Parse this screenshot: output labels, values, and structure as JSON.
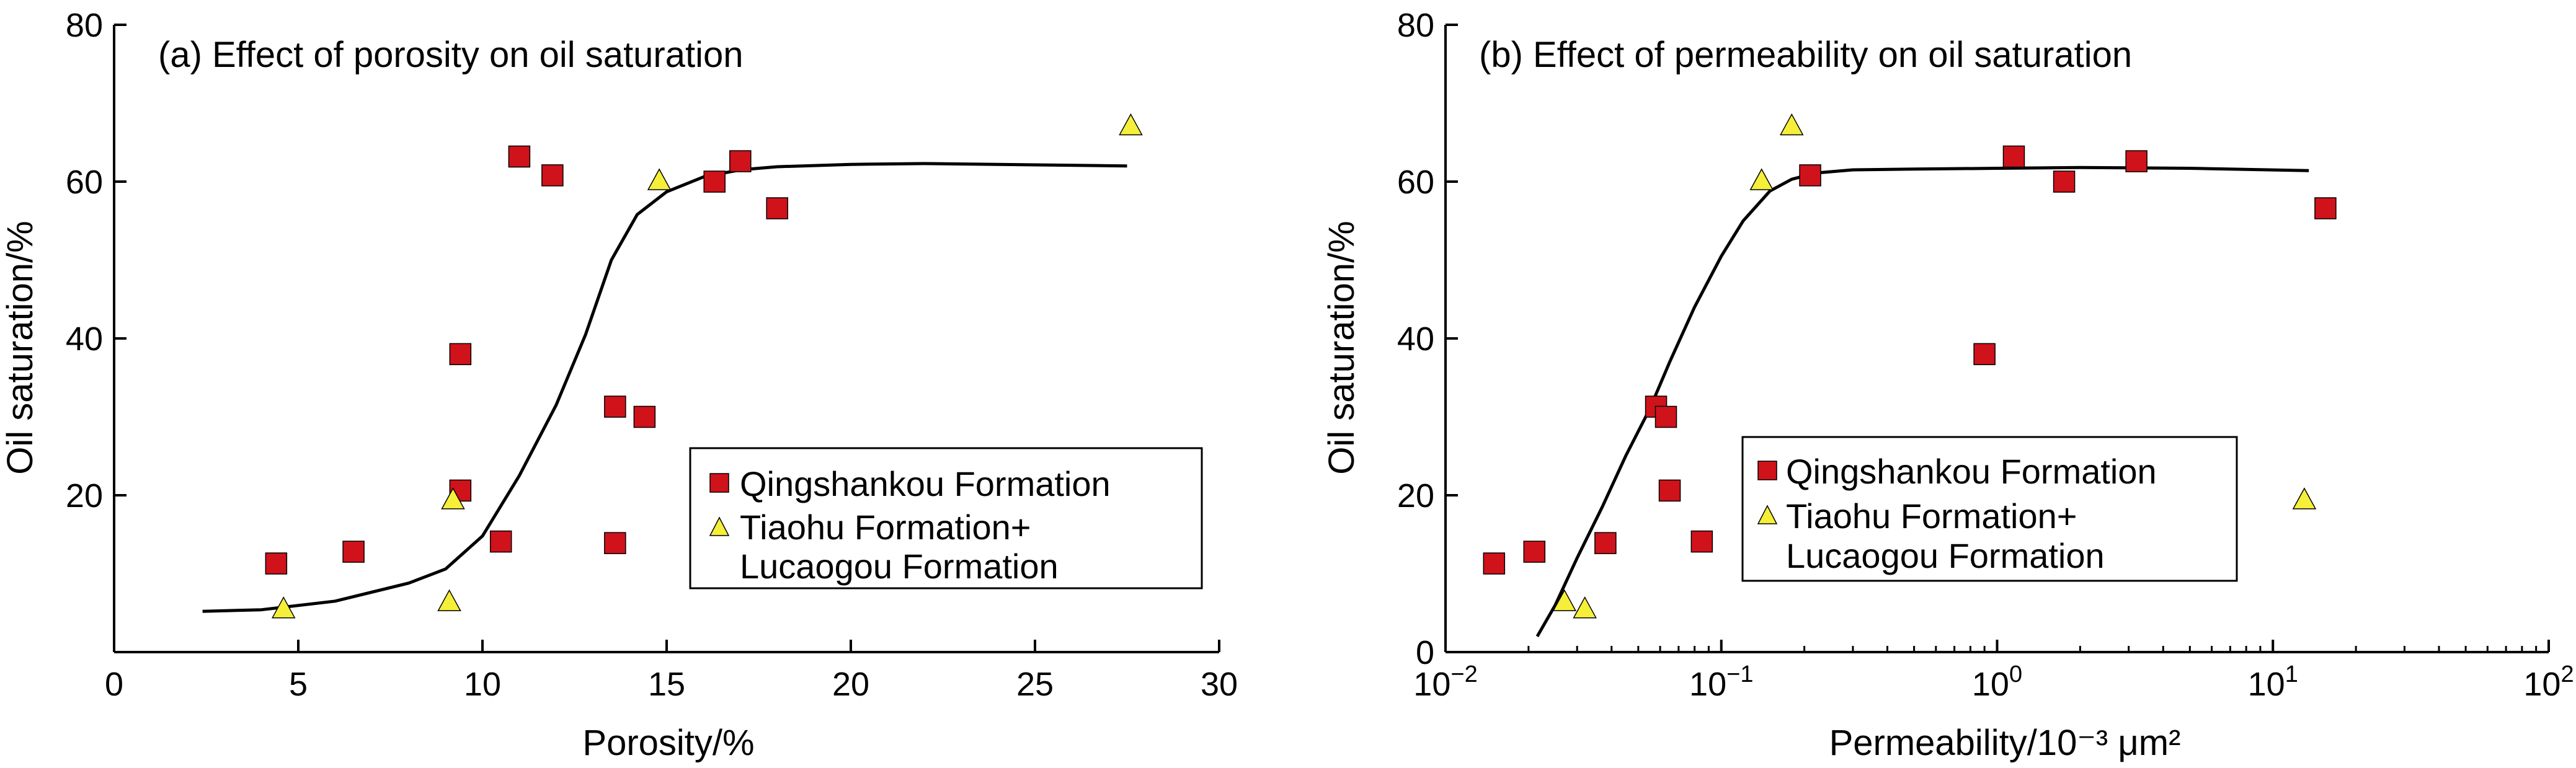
{
  "chart_data": [
    {
      "type": "scatter",
      "title": "(a) Effect of porosity on oil saturation",
      "xlabel": "Porosity/%",
      "ylabel": "Oil saturation/%",
      "xlim": [
        0,
        30
      ],
      "ylim": [
        0,
        80
      ],
      "x_scale": "linear",
      "x_ticks": [
        0,
        5,
        10,
        15,
        20,
        25,
        30
      ],
      "x_tick_labels": [
        "0",
        "5",
        "10",
        "15",
        "20",
        "25",
        "30"
      ],
      "y_ticks": [
        20,
        40,
        60,
        80
      ],
      "y_tick_labels": [
        "20",
        "40",
        "60",
        "80"
      ],
      "grid": false,
      "legend_position": "lower-right",
      "series": [
        {
          "name": "Qingshankou Formation",
          "marker": "square",
          "color": "#d0121b",
          "points": [
            {
              "x": 4.4,
              "y": 11.3
            },
            {
              "x": 6.5,
              "y": 12.8
            },
            {
              "x": 9.4,
              "y": 38
            },
            {
              "x": 9.4,
              "y": 20.6
            },
            {
              "x": 10.5,
              "y": 14.1
            },
            {
              "x": 11.0,
              "y": 63.2
            },
            {
              "x": 11.9,
              "y": 60.8
            },
            {
              "x": 13.6,
              "y": 31.3
            },
            {
              "x": 13.6,
              "y": 13.9
            },
            {
              "x": 14.4,
              "y": 30
            },
            {
              "x": 16.3,
              "y": 60
            },
            {
              "x": 17.0,
              "y": 62.6
            },
            {
              "x": 18.0,
              "y": 56.6
            }
          ]
        },
        {
          "name": "Tiaohu Formation+\nLucaogou Formation",
          "marker": "triangle",
          "color": "#f5ef3a",
          "points": [
            {
              "x": 4.6,
              "y": 5.4
            },
            {
              "x": 9.1,
              "y": 6.3
            },
            {
              "x": 9.2,
              "y": 19.3
            },
            {
              "x": 14.8,
              "y": 60
            },
            {
              "x": 27.6,
              "y": 67
            }
          ]
        }
      ],
      "trend_line": [
        [
          2.4,
          5.2
        ],
        [
          4.0,
          5.4
        ],
        [
          6.0,
          6.5
        ],
        [
          8.0,
          8.8
        ],
        [
          9.0,
          10.6
        ],
        [
          10.0,
          14.8
        ],
        [
          11.0,
          22.5
        ],
        [
          12.0,
          31.5
        ],
        [
          12.8,
          40.5
        ],
        [
          13.5,
          50
        ],
        [
          14.2,
          55.8
        ],
        [
          15.0,
          58.7
        ],
        [
          16.0,
          60.6
        ],
        [
          17.0,
          61.5
        ],
        [
          18.0,
          61.9
        ],
        [
          20.0,
          62.2
        ],
        [
          22.0,
          62.3
        ],
        [
          24.0,
          62.2
        ],
        [
          27.5,
          62.0
        ]
      ],
      "legend": [
        "Qingshankou Formation",
        "Tiaohu Formation+",
        "Lucaogou Formation"
      ]
    },
    {
      "type": "scatter",
      "title": "(b) Effect of permeability on oil saturation",
      "xlabel": "Permeability/10⁻³ μm²",
      "ylabel": "Oil saturation/%",
      "xlim": [
        0.01,
        100
      ],
      "ylim": [
        0,
        80
      ],
      "x_scale": "log",
      "x_ticks": [
        0.01,
        0.1,
        1,
        10,
        100
      ],
      "x_tick_labels": [
        {
          "base": "10",
          "exp": "−2"
        },
        {
          "base": "10",
          "exp": "−1"
        },
        {
          "base": "10",
          "exp": "0"
        },
        {
          "base": "10",
          "exp": "1"
        },
        {
          "base": "10",
          "exp": "2"
        }
      ],
      "y_ticks": [
        0,
        20,
        40,
        60,
        80
      ],
      "y_tick_labels": [
        "0",
        "20",
        "40",
        "60",
        "80"
      ],
      "grid": false,
      "legend_position": "lower-right",
      "series": [
        {
          "name": "Qingshankou Formation",
          "marker": "square",
          "color": "#d0121b",
          "points": [
            {
              "x": 0.015,
              "y": 11.3
            },
            {
              "x": 0.021,
              "y": 12.8
            },
            {
              "x": 0.038,
              "y": 13.9
            },
            {
              "x": 0.058,
              "y": 31.3
            },
            {
              "x": 0.063,
              "y": 30
            },
            {
              "x": 0.065,
              "y": 20.6
            },
            {
              "x": 0.085,
              "y": 14.1
            },
            {
              "x": 0.21,
              "y": 60.8
            },
            {
              "x": 0.9,
              "y": 38
            },
            {
              "x": 1.15,
              "y": 63.2
            },
            {
              "x": 1.75,
              "y": 60
            },
            {
              "x": 3.2,
              "y": 62.6
            },
            {
              "x": 15.5,
              "y": 56.6
            }
          ]
        },
        {
          "name": "Tiaohu Formation+\nLucaogou Formation",
          "marker": "triangle",
          "color": "#f5ef3a",
          "points": [
            {
              "x": 0.027,
              "y": 6.3
            },
            {
              "x": 0.032,
              "y": 5.4
            },
            {
              "x": 0.14,
              "y": 60
            },
            {
              "x": 0.18,
              "y": 67
            },
            {
              "x": 13.0,
              "y": 19.3
            }
          ]
        }
      ],
      "trend_line": [
        [
          0.0215,
          2
        ],
        [
          0.025,
          6
        ],
        [
          0.03,
          12
        ],
        [
          0.037,
          18.5
        ],
        [
          0.045,
          25
        ],
        [
          0.055,
          31
        ],
        [
          0.065,
          37
        ],
        [
          0.08,
          44
        ],
        [
          0.1,
          50.5
        ],
        [
          0.12,
          55
        ],
        [
          0.15,
          58.8
        ],
        [
          0.18,
          60.3
        ],
        [
          0.22,
          61.1
        ],
        [
          0.3,
          61.5
        ],
        [
          0.5,
          61.6
        ],
        [
          1,
          61.7
        ],
        [
          2,
          61.8
        ],
        [
          5,
          61.7
        ],
        [
          13.5,
          61.4
        ]
      ],
      "legend": [
        "Qingshankou Formation",
        "Tiaohu Formation+",
        "Lucaogou Formation"
      ]
    }
  ]
}
